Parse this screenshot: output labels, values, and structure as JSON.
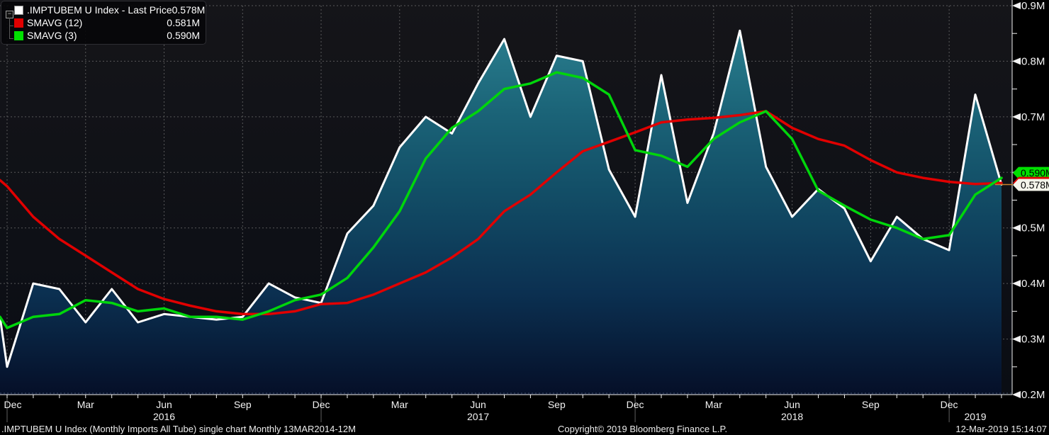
{
  "legend": {
    "expander": "−",
    "items": [
      {
        "label": ".IMPTUBEM U Index - Last Price",
        "value": "0.578M",
        "swatch": "#ffffff",
        "swatch_border": "#8a8a8a"
      },
      {
        "label": "SMAVG (12)",
        "value": "0.581M",
        "swatch": "#e10000",
        "swatch_border": "#e10000"
      },
      {
        "label": "SMAVG (3)",
        "value": "0.590M",
        "swatch": "#00e000",
        "swatch_border": "#00e000"
      }
    ]
  },
  "footer": {
    "left": ".IMPTUBEM U Index (Monthly Imports All Tube) single chart  Monthly 13MAR2014-12M",
    "copyright": "Copyright© 2019 Bloomberg Finance L.P.",
    "timestamp": "12-Mar-2019 15:14:07"
  },
  "colors": {
    "last_price_line": "#ffffff",
    "smavg12_line": "#e10000",
    "smavg3_line": "#00d60b",
    "grid": "#707070",
    "axis": "#f2f2f2",
    "year_separator": "#5f5f5f",
    "marker_line": "#c9822e",
    "area_top": "#2a7e8e",
    "area_bottom": "#050f28",
    "tag_white_bg": "#f4f4ea",
    "tag_text": "#000000"
  },
  "chart_data": {
    "type": "line",
    "title": ".IMPTUBEM U Index (Monthly Imports All Tube) single chart",
    "y_unit": "M",
    "ylim": [
      0.2,
      0.9
    ],
    "y_tick_step": 0.1,
    "grid": true,
    "legend_position": "top-left",
    "categories": [
      "Dec-15",
      "Jan-16",
      "Feb-16",
      "Mar-16",
      "Apr-16",
      "May-16",
      "Jun-16",
      "Jul-16",
      "Aug-16",
      "Sep-16",
      "Oct-16",
      "Nov-16",
      "Dec-16",
      "Jan-17",
      "Feb-17",
      "Mar-17",
      "Apr-17",
      "May-17",
      "Jun-17",
      "Jul-17",
      "Aug-17",
      "Sep-17",
      "Oct-17",
      "Nov-17",
      "Dec-17",
      "Jan-18",
      "Feb-18",
      "Mar-18",
      "Apr-18",
      "May-18",
      "Jun-18",
      "Jul-18",
      "Aug-18",
      "Sep-18",
      "Oct-18",
      "Nov-18",
      "Dec-18",
      "Jan-19",
      "Feb-19"
    ],
    "x_quarter_labels": [
      "Dec",
      "Mar",
      "Jun",
      "Sep"
    ],
    "year_labels": [
      {
        "text": "2016",
        "index": 6
      },
      {
        "text": "2017",
        "index": 18
      },
      {
        "text": "2018",
        "index": 30
      },
      {
        "text": "2019",
        "index": 37
      }
    ],
    "year_separator_indices": [
      0,
      12,
      24,
      36
    ],
    "series": [
      {
        "name": ".IMPTUBEM U Index - Last Price",
        "color": "#ffffff",
        "width": 3,
        "area": true,
        "edge_value": 0.34,
        "values": [
          0.25,
          0.4,
          0.39,
          0.33,
          0.39,
          0.33,
          0.345,
          0.34,
          0.335,
          0.34,
          0.4,
          0.375,
          0.365,
          0.49,
          0.54,
          0.645,
          0.7,
          0.67,
          0.76,
          0.84,
          0.7,
          0.81,
          0.8,
          0.605,
          0.52,
          0.775,
          0.545,
          0.67,
          0.855,
          0.61,
          0.52,
          0.57,
          0.535,
          0.44,
          0.52,
          0.48,
          0.46,
          0.74,
          0.578
        ]
      },
      {
        "name": "SMAVG (12)",
        "color": "#e10000",
        "width": 3.5,
        "area": false,
        "edge_value": 0.586,
        "values": [
          0.575,
          0.52,
          0.48,
          0.45,
          0.42,
          0.39,
          0.372,
          0.36,
          0.35,
          0.345,
          0.345,
          0.35,
          0.363,
          0.365,
          0.38,
          0.4,
          0.42,
          0.447,
          0.48,
          0.53,
          0.56,
          0.6,
          0.638,
          0.655,
          0.672,
          0.69,
          0.695,
          0.698,
          0.703,
          0.71,
          0.68,
          0.66,
          0.648,
          0.622,
          0.6,
          0.59,
          0.583,
          0.579,
          0.581
        ]
      },
      {
        "name": "SMAVG (3)",
        "color": "#00d60b",
        "width": 3.5,
        "area": false,
        "edge_value": 0.34,
        "values": [
          0.32,
          0.34,
          0.345,
          0.37,
          0.365,
          0.35,
          0.355,
          0.34,
          0.34,
          0.335,
          0.35,
          0.37,
          0.38,
          0.41,
          0.465,
          0.53,
          0.625,
          0.68,
          0.71,
          0.75,
          0.76,
          0.78,
          0.77,
          0.74,
          0.64,
          0.63,
          0.61,
          0.66,
          0.69,
          0.71,
          0.66,
          0.567,
          0.54,
          0.515,
          0.5,
          0.48,
          0.487,
          0.56,
          0.59
        ]
      }
    ],
    "last_price_tags": [
      {
        "text": "0.590M",
        "bg": "#00e000",
        "value": 0.59
      },
      {
        "text": "0.581M",
        "bg": "#e10000",
        "value": 0.581
      },
      {
        "text": "0.578M",
        "bg": "#f4f4ea",
        "value": 0.578,
        "marker": true
      }
    ]
  }
}
